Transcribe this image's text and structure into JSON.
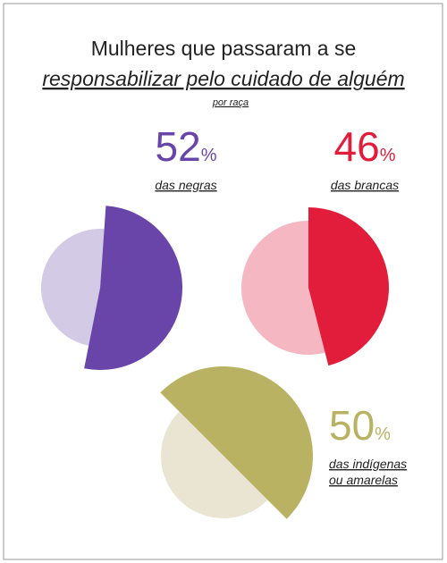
{
  "title": [
    "Mulheres que passaram a se",
    "responsabilizar pelo cuidado de alguém"
  ],
  "subtitle": "por raça",
  "chart_data": [
    {
      "type": "pie",
      "values": [
        52,
        48
      ],
      "unit": "%",
      "label": [
        "das negras"
      ],
      "colors": [
        "#6a45a9",
        "#d3cae6"
      ]
    },
    {
      "type": "pie",
      "values": [
        46,
        54
      ],
      "unit": "%",
      "label": [
        "das brancas"
      ],
      "colors": [
        "#e11d3b",
        "#f5b7c2"
      ]
    },
    {
      "type": "pie",
      "values": [
        50,
        50
      ],
      "unit": "%",
      "label": [
        "das indígenas",
        "ou amarelas"
      ],
      "colors": [
        "#bab263",
        "#e9e5d2"
      ]
    }
  ]
}
